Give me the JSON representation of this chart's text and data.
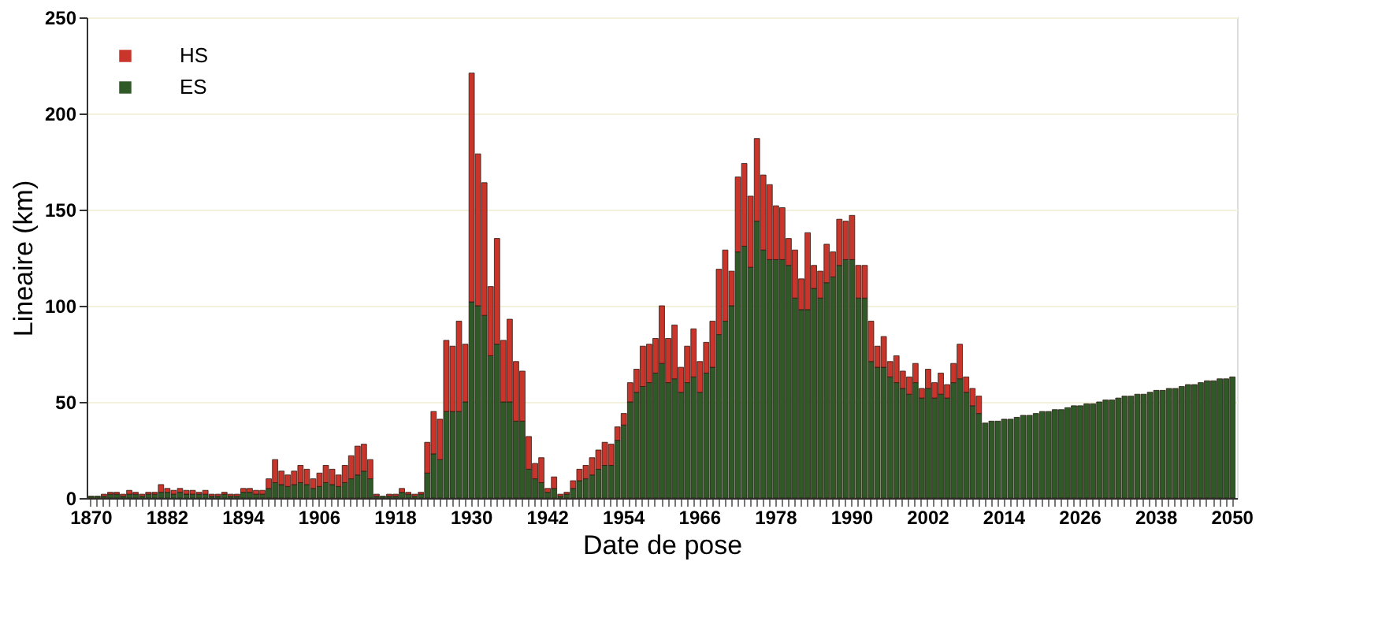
{
  "chart_data": {
    "type": "bar",
    "stacked": true,
    "xlabel": "Date de pose",
    "ylabel": "Lineaire (km)",
    "categories": [
      "1870",
      null,
      null,
      null,
      null,
      null,
      null,
      null,
      null,
      null,
      null,
      null,
      "1882",
      null,
      null,
      null,
      null,
      null,
      null,
      null,
      null,
      null,
      null,
      null,
      "1894",
      null,
      null,
      null,
      null,
      null,
      null,
      null,
      null,
      null,
      null,
      null,
      "1906",
      null,
      null,
      null,
      null,
      null,
      null,
      null,
      null,
      null,
      null,
      null,
      "1918",
      null,
      null,
      null,
      null,
      null,
      null,
      null,
      null,
      null,
      null,
      null,
      "1930",
      null,
      null,
      null,
      null,
      null,
      null,
      null,
      null,
      null,
      null,
      null,
      "1942",
      null,
      null,
      null,
      null,
      null,
      null,
      null,
      null,
      null,
      null,
      null,
      "1954",
      null,
      null,
      null,
      null,
      null,
      null,
      null,
      null,
      null,
      null,
      null,
      "1966",
      null,
      null,
      null,
      null,
      null,
      null,
      null,
      null,
      null,
      null,
      null,
      "1978",
      null,
      null,
      null,
      null,
      null,
      null,
      null,
      null,
      null,
      null,
      null,
      "1990",
      null,
      null,
      null,
      null,
      null,
      null,
      null,
      null,
      null,
      null,
      null,
      "2002",
      null,
      null,
      null,
      null,
      null,
      null,
      null,
      null,
      null,
      null,
      null,
      "2014",
      null,
      null,
      null,
      null,
      null,
      null,
      null,
      null,
      null,
      null,
      null,
      "2026",
      null,
      null,
      null,
      null,
      null,
      null,
      null,
      null,
      null,
      null,
      null,
      "2038",
      null,
      null,
      null,
      null,
      null,
      null,
      null,
      null,
      null,
      null,
      null,
      "2050"
    ],
    "series": [
      {
        "name": "ES",
        "color": "#2f5a28",
        "values": [
          1,
          1,
          1,
          2,
          2,
          1,
          2,
          2,
          1,
          2,
          2,
          3,
          3,
          2,
          3,
          2,
          2,
          2,
          2,
          1,
          1,
          2,
          1,
          1,
          3,
          3,
          2,
          2,
          5,
          8,
          7,
          6,
          7,
          8,
          7,
          5,
          6,
          8,
          7,
          6,
          8,
          10,
          12,
          14,
          10,
          1,
          1,
          1,
          1,
          3,
          2,
          1,
          2,
          13,
          23,
          20,
          45,
          45,
          45,
          50,
          102,
          100,
          95,
          74,
          80,
          50,
          50,
          40,
          40,
          15,
          10,
          8,
          3,
          5,
          1,
          2,
          5,
          9,
          10,
          12,
          15,
          17,
          17,
          30,
          38,
          50,
          55,
          58,
          60,
          65,
          70,
          60,
          62,
          55,
          60,
          63,
          55,
          65,
          68,
          85,
          92,
          100,
          128,
          131,
          120,
          144,
          129,
          124,
          124,
          124,
          121,
          104,
          98,
          98,
          109,
          104,
          112,
          115,
          121,
          124,
          124,
          104,
          104,
          71,
          68,
          68,
          63,
          60,
          57,
          54,
          60,
          52,
          57,
          52,
          54,
          52,
          60,
          62,
          55,
          48,
          44,
          39,
          40,
          40,
          41,
          41,
          42,
          43,
          43,
          44,
          45,
          45,
          46,
          46,
          47,
          48,
          48,
          49,
          49,
          50,
          51,
          51,
          52,
          53,
          53,
          54,
          54,
          55,
          56,
          56,
          57,
          57,
          58,
          59,
          59,
          60,
          61,
          61,
          62,
          62,
          63
        ]
      },
      {
        "name": "HS",
        "color": "#c9352b",
        "values": [
          null,
          null,
          1,
          1,
          1,
          1,
          2,
          1,
          1,
          1,
          1,
          4,
          2,
          2,
          2,
          2,
          2,
          1,
          2,
          1,
          1,
          1,
          1,
          1,
          2,
          2,
          2,
          2,
          5,
          12,
          7,
          6,
          7,
          9,
          8,
          5,
          7,
          9,
          8,
          6,
          9,
          12,
          15,
          14,
          10,
          1,
          null,
          1,
          1,
          2,
          1,
          1,
          1,
          16,
          22,
          21,
          37,
          34,
          47,
          30,
          119,
          79,
          69,
          36,
          55,
          32,
          43,
          31,
          26,
          17,
          8,
          13,
          2,
          6,
          1,
          1,
          4,
          6,
          7,
          9,
          10,
          12,
          11,
          7,
          6,
          10,
          12,
          21,
          20,
          18,
          30,
          23,
          28,
          13,
          19,
          25,
          16,
          16,
          24,
          34,
          37,
          18,
          39,
          43,
          37,
          43,
          39,
          39,
          28,
          27,
          14,
          25,
          16,
          40,
          12,
          14,
          20,
          13,
          24,
          20,
          23,
          17,
          17,
          21,
          11,
          16,
          8,
          14,
          9,
          9,
          10,
          5,
          10,
          8,
          11,
          7,
          10,
          18,
          8,
          9,
          9,
          null,
          null,
          null,
          null,
          null,
          null,
          null,
          null,
          null,
          null,
          null,
          null,
          null,
          null,
          null,
          null,
          null,
          null,
          null,
          null,
          null,
          null,
          null,
          null,
          null,
          null,
          null,
          null,
          null,
          null,
          null,
          null,
          null,
          null,
          null,
          null,
          null,
          null,
          null,
          null
        ]
      }
    ],
    "ylim": [
      0,
      250
    ],
    "yticks": [
      0,
      50,
      100,
      150,
      200,
      250
    ],
    "grid": "y",
    "legend": "top left"
  }
}
